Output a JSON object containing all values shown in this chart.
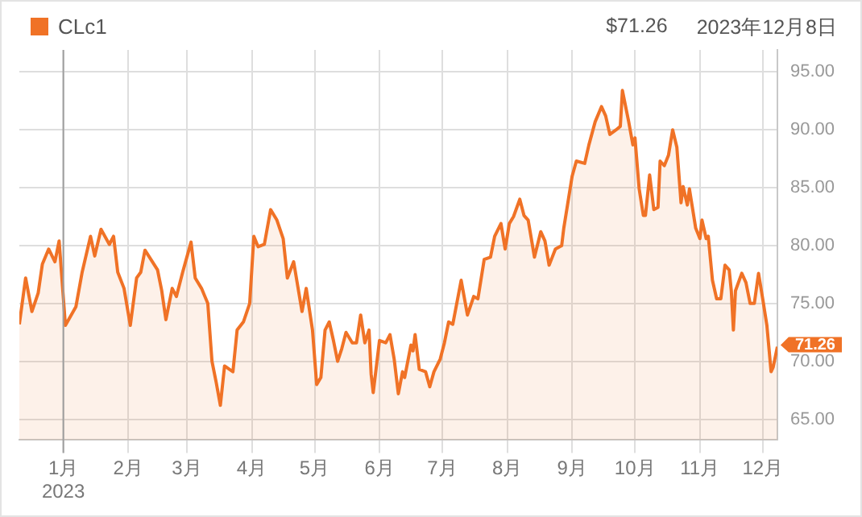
{
  "chart_data": {
    "type": "area",
    "legend": "top left",
    "grid": true,
    "annotations": [
      "$71.26",
      "2023年12月8日",
      {
        "text": "71.26",
        "x": "2023-12-08",
        "y": 71.26
      }
    ],
    "xlim": [
      "2022-12-11",
      "2023-12-08"
    ],
    "xticks": [
      {
        "value": "2023-01-01",
        "label": "1月\n2023"
      },
      {
        "value": "2023-02-01",
        "label": "2月"
      },
      {
        "value": "2023-03-01",
        "label": "3月"
      },
      {
        "value": "2023-04-01",
        "label": "4月"
      },
      {
        "value": "2023-05-01",
        "label": "5月"
      },
      {
        "value": "2023-06-01",
        "label": "6月"
      },
      {
        "value": "2023-07-01",
        "label": "7月"
      },
      {
        "value": "2023-08-01",
        "label": "8月"
      },
      {
        "value": "2023-09-01",
        "label": "9月"
      },
      {
        "value": "2023-10-01",
        "label": "10月"
      },
      {
        "value": "2023-11-01",
        "label": "11月"
      },
      {
        "value": "2023-12-01",
        "label": "12月"
      }
    ],
    "ylim": [
      63.2,
      96.9
    ],
    "yticks": [
      {
        "value": 65,
        "label": "65.00"
      },
      {
        "value": 70,
        "label": "70.00"
      },
      {
        "value": 75,
        "label": "75.00"
      },
      {
        "value": 80,
        "label": "80.00"
      },
      {
        "value": 85,
        "label": "85.00"
      },
      {
        "value": 90,
        "label": "90.00"
      },
      {
        "value": 95,
        "label": "95.00"
      }
    ],
    "ref_lines": [
      {
        "axis": "x",
        "value": "2023-01-01",
        "color": "#9e9e9e"
      }
    ],
    "x": [
      "2022-12-11",
      "2022-12-14",
      "2022-12-17",
      "2022-12-20",
      "2022-12-22",
      "2022-12-25",
      "2022-12-28",
      "2022-12-30",
      "2023-01-02",
      "2023-01-07",
      "2023-01-10",
      "2023-01-14",
      "2023-01-16",
      "2023-01-19",
      "2023-01-23",
      "2023-01-25",
      "2023-01-27",
      "2023-01-30",
      "2023-02-02",
      "2023-02-05",
      "2023-02-07",
      "2023-02-09",
      "2023-02-15",
      "2023-02-17",
      "2023-02-19",
      "2023-02-22",
      "2023-02-24",
      "2023-02-27",
      "2023-03-03",
      "2023-03-05",
      "2023-03-08",
      "2023-03-11",
      "2023-03-13",
      "2023-03-15",
      "2023-03-17",
      "2023-03-19",
      "2023-03-23",
      "2023-03-25",
      "2023-03-28",
      "2023-03-31",
      "2023-04-02",
      "2023-04-04",
      "2023-04-07",
      "2023-04-10",
      "2023-04-13",
      "2023-04-16",
      "2023-04-18",
      "2023-04-21",
      "2023-04-25",
      "2023-04-27",
      "2023-04-30",
      "2023-05-02",
      "2023-05-04",
      "2023-05-06",
      "2023-05-08",
      "2023-05-10",
      "2023-05-12",
      "2023-05-14",
      "2023-05-16",
      "2023-05-19",
      "2023-05-21",
      "2023-05-23",
      "2023-05-25",
      "2023-05-27",
      "2023-05-28",
      "2023-05-29",
      "2023-06-01",
      "2023-06-04",
      "2023-06-06",
      "2023-06-08",
      "2023-06-10",
      "2023-06-12",
      "2023-06-13",
      "2023-06-16",
      "2023-06-17",
      "2023-06-18",
      "2023-06-20",
      "2023-06-23",
      "2023-06-25",
      "2023-06-27",
      "2023-06-30",
      "2023-07-02",
      "2023-07-04",
      "2023-07-06",
      "2023-07-10",
      "2023-07-13",
      "2023-07-16",
      "2023-07-18",
      "2023-07-21",
      "2023-07-24",
      "2023-07-26",
      "2023-07-29",
      "2023-07-31",
      "2023-08-02",
      "2023-08-04",
      "2023-08-07",
      "2023-08-09",
      "2023-08-11",
      "2023-08-14",
      "2023-08-17",
      "2023-08-19",
      "2023-08-21",
      "2023-08-24",
      "2023-08-27",
      "2023-08-28",
      "2023-09-01",
      "2023-09-03",
      "2023-09-07",
      "2023-09-09",
      "2023-09-12",
      "2023-09-15",
      "2023-09-17",
      "2023-09-19",
      "2023-09-22",
      "2023-09-24",
      "2023-09-25",
      "2023-09-28",
      "2023-09-30",
      "2023-10-01",
      "2023-10-03",
      "2023-10-05",
      "2023-10-06",
      "2023-10-08",
      "2023-10-10",
      "2023-10-12",
      "2023-10-13",
      "2023-10-15",
      "2023-10-17",
      "2023-10-19",
      "2023-10-21",
      "2023-10-23",
      "2023-10-24",
      "2023-10-26",
      "2023-10-27",
      "2023-10-30",
      "2023-11-01",
      "2023-11-02",
      "2023-11-04",
      "2023-11-05",
      "2023-11-07",
      "2023-11-09",
      "2023-11-11",
      "2023-11-13",
      "2023-11-15",
      "2023-11-16",
      "2023-11-17",
      "2023-11-18",
      "2023-11-21",
      "2023-11-23",
      "2023-11-25",
      "2023-11-27",
      "2023-11-29",
      "2023-12-01",
      "2023-12-03",
      "2023-12-05",
      "2023-12-06",
      "2023-12-08"
    ],
    "series": [
      {
        "name": "CLc1",
        "color": "#f07226",
        "values": [
          73.2,
          77.2,
          74.3,
          75.9,
          78.4,
          79.7,
          78.6,
          80.4,
          73.1,
          74.7,
          77.7,
          80.8,
          79.1,
          81.4,
          80.1,
          80.8,
          77.7,
          76.3,
          73.1,
          77.2,
          77.7,
          79.6,
          77.9,
          76.1,
          73.6,
          76.3,
          75.6,
          77.7,
          80.3,
          77.2,
          76.3,
          75.0,
          70.0,
          68.2,
          66.2,
          69.6,
          69.1,
          72.7,
          73.4,
          75.0,
          80.8,
          79.9,
          80.1,
          83.1,
          82.2,
          80.6,
          77.2,
          78.6,
          74.3,
          76.3,
          72.7,
          68.0,
          68.6,
          72.7,
          73.4,
          71.8,
          70.0,
          71.1,
          72.5,
          71.6,
          71.6,
          74.0,
          71.6,
          72.7,
          68.9,
          67.3,
          71.8,
          71.6,
          72.3,
          70.2,
          67.2,
          69.1,
          68.6,
          71.4,
          70.9,
          72.3,
          69.3,
          69.1,
          67.8,
          69.1,
          70.2,
          71.6,
          73.4,
          73.2,
          77.0,
          74.0,
          75.6,
          75.4,
          78.8,
          79.0,
          80.8,
          81.9,
          79.7,
          81.9,
          82.5,
          84.0,
          82.6,
          82.2,
          79.0,
          81.2,
          80.4,
          78.3,
          79.7,
          80.0,
          81.5,
          86.0,
          87.3,
          87.1,
          88.7,
          90.7,
          92.0,
          91.2,
          89.6,
          90.0,
          90.3,
          93.4,
          90.7,
          88.7,
          89.3,
          84.9,
          82.6,
          82.6,
          86.1,
          83.1,
          83.3,
          87.3,
          86.9,
          87.8,
          90.0,
          88.5,
          83.7,
          85.1,
          83.5,
          84.9,
          81.5,
          80.6,
          82.2,
          80.6,
          80.8,
          77.0,
          75.4,
          75.4,
          78.3,
          77.9,
          76.1,
          72.7,
          76.1,
          77.6,
          76.8,
          75.0,
          75.0,
          77.6,
          75.4,
          73.1,
          69.1,
          69.5,
          71.26
        ]
      }
    ]
  }
}
